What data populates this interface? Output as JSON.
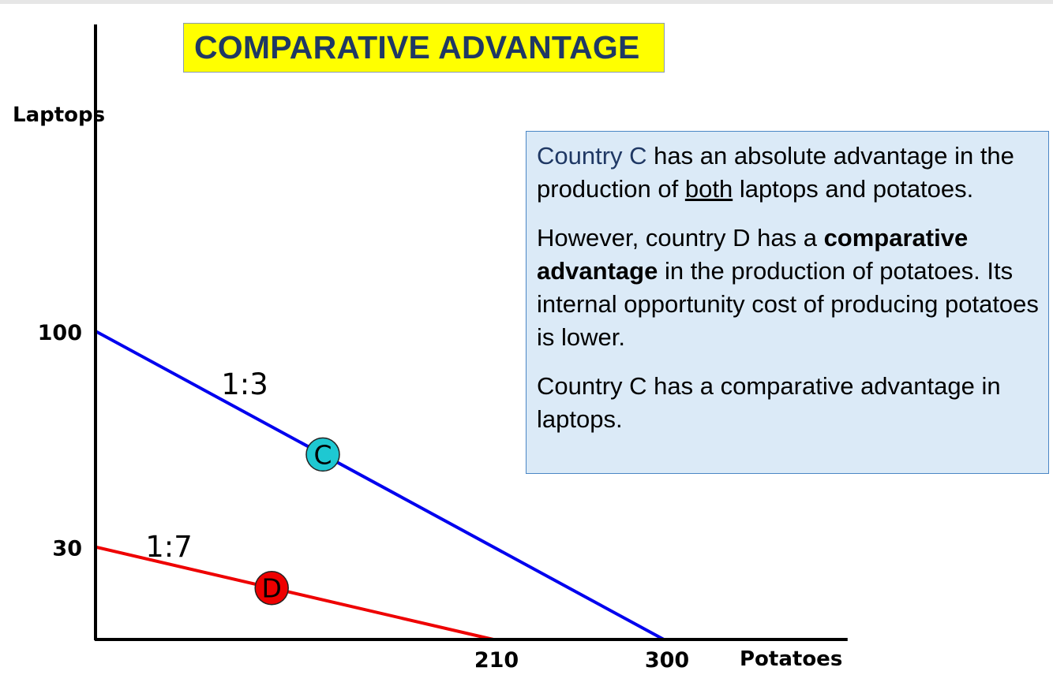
{
  "title": "COMPARATIVE ADVANTAGE",
  "info": {
    "p1": {
      "country": "Country C",
      "text_a": " has an absolute advantage in the production of ",
      "underlined": "both",
      "text_b": " laptops and potatoes."
    },
    "p2": {
      "text_a": "However, country D has a ",
      "bold": "comparative advantage",
      "text_b": " in the production of potatoes. Its internal opportunity cost of producing potatoes is lower."
    },
    "p3": {
      "text": "Country C has a comparative advantage in laptops."
    }
  },
  "chart_data": {
    "type": "line",
    "xlabel": "Potatoes",
    "ylabel": "Laptops",
    "x_ticks": [
      "210",
      "300"
    ],
    "y_ticks": [
      "100",
      "30"
    ],
    "xlim": [
      0,
      397
    ],
    "ylim": [
      0,
      200
    ],
    "grid": false,
    "series": [
      {
        "name": "C",
        "color": "#0000ee",
        "points": [
          [
            0,
            100
          ],
          [
            300,
            0
          ]
        ],
        "ratio_label": "1:3",
        "marker": {
          "label": "C",
          "x": 120,
          "y": 60,
          "color": "#1ec8d2"
        }
      },
      {
        "name": "D",
        "color": "#ee0000",
        "points": [
          [
            0,
            30
          ],
          [
            210,
            0
          ]
        ],
        "ratio_label": "1:7",
        "marker": {
          "label": "D",
          "x": 93,
          "y": 16.7,
          "color": "#ee0000"
        }
      }
    ]
  }
}
